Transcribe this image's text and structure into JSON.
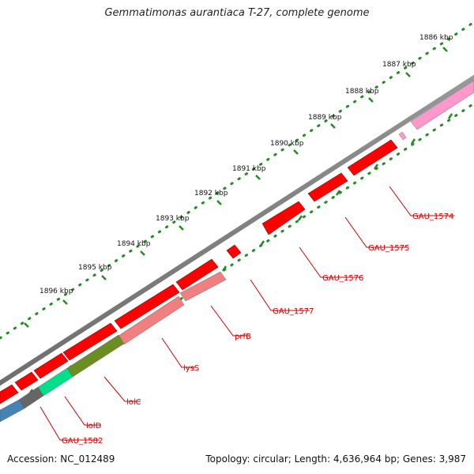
{
  "title": "Gemmatimonas aurantiaca T-27, complete genome",
  "footer": {
    "accession": "Accession: NC_012489",
    "summary": "Topology: circular; Length: 4,636,964 bp; Genes: 3,987"
  },
  "map": {
    "topology": "circular",
    "tick_unit": "kbp",
    "backbone_color": "#8a8a8a",
    "tick_color": "#228b22",
    "label_color": "#cc0000",
    "ticks_kbp": [
      1886,
      1887,
      1888,
      1889,
      1890,
      1891,
      1892,
      1893,
      1894,
      1895,
      1896
    ],
    "genes": [
      {
        "name": "GAU_1574",
        "strand": "+",
        "color": "#ff0000",
        "labeled": true
      },
      {
        "name": "GAU_1575",
        "strand": "+",
        "color": "#ff0000",
        "labeled": true
      },
      {
        "name": "GAU_1576",
        "strand": "+",
        "color": "#ff0000",
        "labeled": true
      },
      {
        "name": "GAU_1577",
        "strand": "+",
        "color": "#ff0000",
        "labeled": true
      },
      {
        "name": "prfB",
        "strand": "-",
        "color": "#f08080",
        "labeled": true
      },
      {
        "name": "lysS",
        "strand": "-",
        "color": "#f08080",
        "labeled": true
      },
      {
        "name": "lolC",
        "strand": "-",
        "color": "#6b8e23",
        "labeled": true
      },
      {
        "name": "lolD",
        "strand": "-",
        "color": "#00e08a",
        "labeled": true
      },
      {
        "name": "GAU_1582",
        "strand": "-",
        "color": "#666666",
        "labeled": true
      },
      {
        "name": "",
        "strand": "-",
        "color": "#ff99cc",
        "labeled": false
      },
      {
        "name": "",
        "strand": "-",
        "color": "#4682b4",
        "labeled": false
      }
    ]
  }
}
